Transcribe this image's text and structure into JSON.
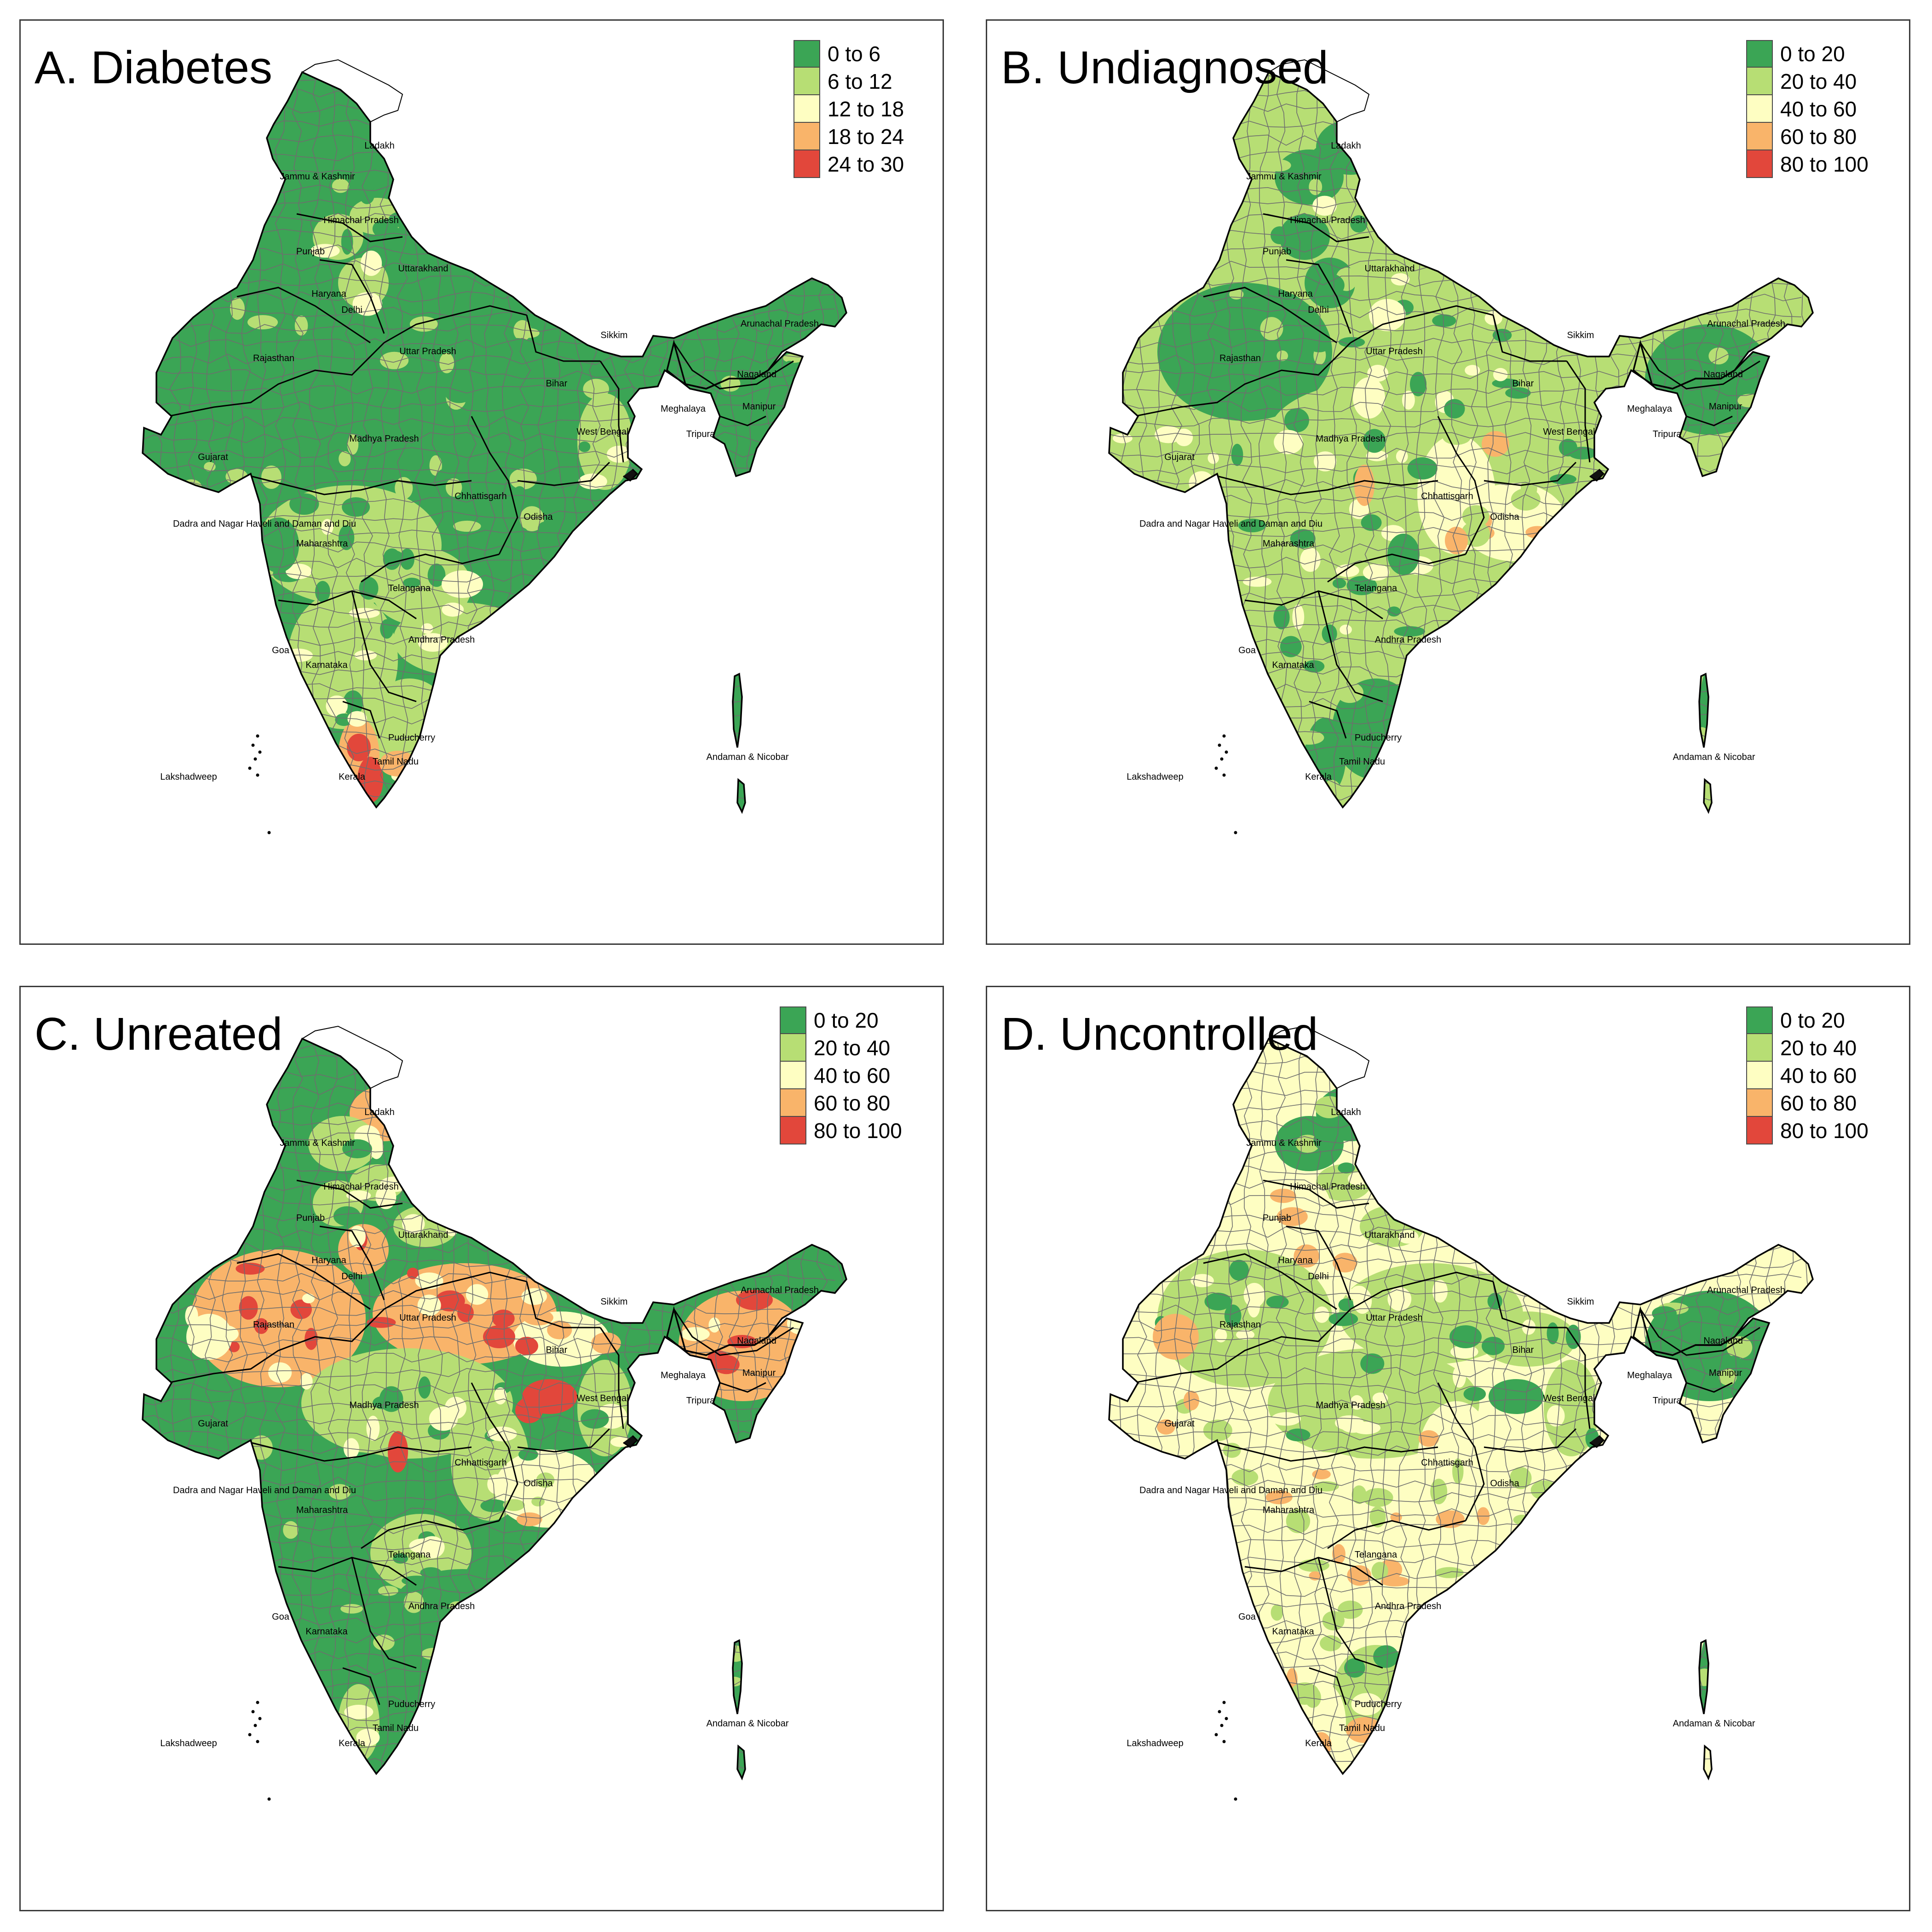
{
  "palette": {
    "dark_green": "#3ba555",
    "light_green": "#b7de74",
    "pale_yellow": "#fefec2",
    "orange": "#f9b46a",
    "red": "#e2473b",
    "border_district": "#6e6e6e",
    "border_state": "#000000"
  },
  "state_labels": [
    "Ladakh",
    "Jammu & Kashmir",
    "Himachal Pradesh",
    "Punjab",
    "Uttarakhand",
    "Haryana",
    "Delhi",
    "Rajasthan",
    "Uttar Pradesh",
    "Sikkim",
    "Arunachal Pradesh",
    "Bihar",
    "Meghalaya",
    "Nagaland",
    "Manipur",
    "Tripura",
    "West Bengal",
    "Gujarat",
    "Madhya Pradesh",
    "Chhattisgarh",
    "Dadra and Nagar Haveli and Daman and Diu",
    "Odisha",
    "Maharashtra",
    "Telangana",
    "Goa",
    "Andhra Pradesh",
    "Karnataka",
    "Puducherry",
    "Andaman & Nicobar",
    "Lakshadweep",
    "Tamil Nadu",
    "Kerala"
  ],
  "panels": [
    {
      "title": "A. Diabetes",
      "legend": [
        {
          "label": "0 to 6",
          "color": "#3ba555"
        },
        {
          "label": "6 to 12",
          "color": "#b7de74"
        },
        {
          "label": "12 to 18",
          "color": "#fefec2"
        },
        {
          "label": "18 to 24",
          "color": "#f9b46a"
        },
        {
          "label": "24 to 30",
          "color": "#e2473b"
        }
      ],
      "dominant_class": 0,
      "region_classes": {
        "ladakh": 0,
        "jk": 0,
        "hp": 1,
        "punjab": 1,
        "uttarakhand": 0,
        "haryana": 1,
        "rajasthan": 0,
        "gujarat": 0,
        "up": 0,
        "mp": 0,
        "bihar": 0,
        "wb": 1,
        "northeast": 0,
        "chhattisgarh": 0,
        "odisha": 0,
        "maharashtra": 1,
        "telangana": 1,
        "ap": 1,
        "karnataka": 1,
        "tn": 1,
        "kerala": 3,
        "andaman": 0
      },
      "patches": [
        {
          "region": "kerala-south",
          "cls": 4
        },
        {
          "region": "tn-south",
          "cls": 3
        },
        {
          "region": "ap-coast",
          "cls": 2
        },
        {
          "region": "maharashtra-west",
          "cls": 0
        }
      ]
    },
    {
      "title": "B. Undiagnosed",
      "legend": [
        {
          "label": "0 to 20",
          "color": "#3ba555"
        },
        {
          "label": "20 to 40",
          "color": "#b7de74"
        },
        {
          "label": "40 to 60",
          "color": "#fefec2"
        },
        {
          "label": "60 to 80",
          "color": "#f9b46a"
        },
        {
          "label": "80 to 100",
          "color": "#e2473b"
        }
      ],
      "dominant_class": 1,
      "region_classes": {
        "ladakh": 0,
        "jk": 0,
        "hp": 1,
        "punjab": 0,
        "uttarakhand": 1,
        "haryana": 0,
        "rajasthan": 0,
        "gujarat": 1,
        "up": 1,
        "mp": 1,
        "bihar": 1,
        "wb": 1,
        "northeast": 0,
        "chhattisgarh": 2,
        "odisha": 2,
        "maharashtra": 1,
        "telangana": 1,
        "ap": 1,
        "karnataka": 1,
        "tn": 0,
        "kerala": 0,
        "andaman": 0
      },
      "patches": [
        {
          "region": "mp-east",
          "cls": 3
        },
        {
          "region": "up-west",
          "cls": 2
        },
        {
          "region": "chhattisgarh-south",
          "cls": 3
        },
        {
          "region": "telangana-north",
          "cls": 0
        }
      ]
    },
    {
      "title": "C. Unreated",
      "legend": [
        {
          "label": "0 to 20",
          "color": "#3ba555"
        },
        {
          "label": "20 to 40",
          "color": "#b7de74"
        },
        {
          "label": "40 to 60",
          "color": "#fefec2"
        },
        {
          "label": "60 to 80",
          "color": "#f9b46a"
        },
        {
          "label": "80 to 100",
          "color": "#e2473b"
        }
      ],
      "dominant_class": 0,
      "region_classes": {
        "ladakh": 3,
        "jk": 1,
        "hp": 1,
        "punjab": 1,
        "uttarakhand": 1,
        "haryana": 3,
        "rajasthan": 3,
        "gujarat": 0,
        "up": 3,
        "mp": 1,
        "bihar": 2,
        "wb": 1,
        "northeast": 3,
        "chhattisgarh": 1,
        "odisha": 2,
        "maharashtra": 0,
        "telangana": 1,
        "ap": 0,
        "karnataka": 0,
        "tn": 0,
        "kerala": 1,
        "andaman": 0
      },
      "patches": [
        {
          "region": "jharkhand",
          "cls": 4
        },
        {
          "region": "mp-east",
          "cls": 4
        },
        {
          "region": "up-east",
          "cls": 4
        },
        {
          "region": "arunachal",
          "cls": 4
        },
        {
          "region": "rajasthan-south",
          "cls": 2
        }
      ]
    },
    {
      "title": "D. Uncontrolled",
      "legend": [
        {
          "label": "0 to 20",
          "color": "#3ba555"
        },
        {
          "label": "20 to 40",
          "color": "#b7de74"
        },
        {
          "label": "40 to 60",
          "color": "#fefec2"
        },
        {
          "label": "60 to 80",
          "color": "#f9b46a"
        },
        {
          "label": "80 to 100",
          "color": "#e2473b"
        }
      ],
      "dominant_class": 2,
      "region_classes": {
        "ladakh": 0,
        "jk": 0,
        "hp": 1,
        "punjab": 2,
        "uttarakhand": 1,
        "haryana": 2,
        "rajasthan": 1,
        "gujarat": 2,
        "up": 1,
        "mp": 1,
        "bihar": 1,
        "wb": 1,
        "northeast": 0,
        "chhattisgarh": 2,
        "odisha": 2,
        "maharashtra": 2,
        "telangana": 2,
        "ap": 2,
        "karnataka": 2,
        "tn": 1,
        "kerala": 2,
        "andaman": 0
      },
      "patches": [
        {
          "region": "rajasthan-south",
          "cls": 3
        },
        {
          "region": "tn-south",
          "cls": 3
        },
        {
          "region": "jharkhand",
          "cls": 0
        },
        {
          "region": "up-east",
          "cls": 0
        }
      ]
    }
  ]
}
